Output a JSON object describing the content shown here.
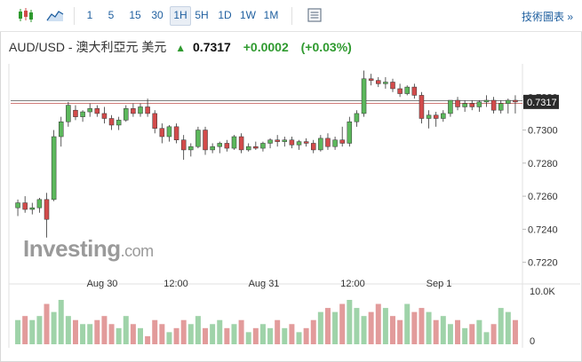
{
  "toolbar": {
    "intervals": [
      "1",
      "5",
      "15",
      "30",
      "1H",
      "5H",
      "1D",
      "1W",
      "1M"
    ],
    "active_interval": "1H",
    "advanced_label": "技術圖表 »",
    "icons": [
      "candlestick-icon",
      "area-chart-icon",
      "settings-table-icon"
    ]
  },
  "instrument": {
    "pair": "AUD/USD - 澳大利亞元 美元",
    "price": "0.7317",
    "change": "+0.0002",
    "change_pct": "(+0.03%)",
    "direction": "up"
  },
  "logo": {
    "main": "Investing",
    "suffix": ".com"
  },
  "colors": {
    "up": "#5cb85c",
    "down": "#d24b4b",
    "up_vol": "#9fd3a9",
    "down_vol": "#e29b9b",
    "accent": "#1f5f9f"
  },
  "chart_data": {
    "type": "candlestick",
    "price_axis": {
      "ticks": [
        "0.7320",
        "0.7300",
        "0.7280",
        "0.7260",
        "0.7240",
        "0.7220"
      ],
      "range": [
        0.7215,
        0.734
      ],
      "current_label": "0.7317"
    },
    "volume_axis": {
      "ticks": [
        "10.0K",
        "0"
      ]
    },
    "time_labels": [
      "Aug 30",
      "12:00",
      "Aug 31",
      "12:00",
      "Sep 1"
    ],
    "candles": [
      [
        0.7253,
        0.7258,
        0.7248,
        0.7256
      ],
      [
        0.7256,
        0.726,
        0.725,
        0.7252
      ],
      [
        0.7252,
        0.7256,
        0.7249,
        0.7253
      ],
      [
        0.7253,
        0.7259,
        0.725,
        0.7258
      ],
      [
        0.7258,
        0.7262,
        0.7235,
        0.7246
      ],
      [
        0.7258,
        0.73,
        0.7257,
        0.7296
      ],
      [
        0.7296,
        0.7308,
        0.729,
        0.7305
      ],
      [
        0.7305,
        0.7317,
        0.7302,
        0.7315
      ],
      [
        0.7312,
        0.7315,
        0.7306,
        0.7308
      ],
      [
        0.7308,
        0.7312,
        0.7305,
        0.7311
      ],
      [
        0.7311,
        0.7316,
        0.7308,
        0.7313
      ],
      [
        0.7313,
        0.7315,
        0.7308,
        0.731
      ],
      [
        0.731,
        0.7314,
        0.7304,
        0.7307
      ],
      [
        0.7307,
        0.7309,
        0.73,
        0.7303
      ],
      [
        0.7303,
        0.7308,
        0.73,
        0.7306
      ],
      [
        0.7306,
        0.7315,
        0.7305,
        0.7313
      ],
      [
        0.7313,
        0.7316,
        0.7308,
        0.731
      ],
      [
        0.731,
        0.7316,
        0.7308,
        0.7314
      ],
      [
        0.7314,
        0.7319,
        0.7308,
        0.731
      ],
      [
        0.731,
        0.7312,
        0.7298,
        0.7301
      ],
      [
        0.7301,
        0.7304,
        0.7292,
        0.7296
      ],
      [
        0.7296,
        0.7303,
        0.7293,
        0.7302
      ],
      [
        0.7302,
        0.7304,
        0.7292,
        0.7294
      ],
      [
        0.7294,
        0.7297,
        0.7282,
        0.7288
      ],
      [
        0.7288,
        0.7292,
        0.7284,
        0.729
      ],
      [
        0.729,
        0.7302,
        0.7289,
        0.73
      ],
      [
        0.73,
        0.7302,
        0.7285,
        0.7288
      ],
      [
        0.7288,
        0.7292,
        0.7286,
        0.729
      ],
      [
        0.729,
        0.7293,
        0.7286,
        0.7292
      ],
      [
        0.7292,
        0.7294,
        0.7287,
        0.7289
      ],
      [
        0.7289,
        0.7297,
        0.7288,
        0.7296
      ],
      [
        0.7296,
        0.7298,
        0.7286,
        0.7288
      ],
      [
        0.7288,
        0.7292,
        0.7287,
        0.729
      ],
      [
        0.729,
        0.7293,
        0.7288,
        0.7289
      ],
      [
        0.7289,
        0.7293,
        0.7287,
        0.7292
      ],
      [
        0.7292,
        0.7295,
        0.7289,
        0.7294
      ],
      [
        0.7294,
        0.7297,
        0.729,
        0.7293
      ],
      [
        0.7293,
        0.7296,
        0.729,
        0.7294
      ],
      [
        0.7294,
        0.7296,
        0.7289,
        0.7291
      ],
      [
        0.7291,
        0.7294,
        0.7288,
        0.7293
      ],
      [
        0.7293,
        0.7295,
        0.729,
        0.7292
      ],
      [
        0.7292,
        0.7294,
        0.7286,
        0.7288
      ],
      [
        0.7288,
        0.7297,
        0.7287,
        0.7295
      ],
      [
        0.7295,
        0.7298,
        0.7288,
        0.729
      ],
      [
        0.729,
        0.7296,
        0.7288,
        0.7294
      ],
      [
        0.7294,
        0.7302,
        0.729,
        0.7292
      ],
      [
        0.7292,
        0.7308,
        0.729,
        0.7305
      ],
      [
        0.7305,
        0.7312,
        0.7302,
        0.731
      ],
      [
        0.731,
        0.7336,
        0.7308,
        0.7331
      ],
      [
        0.7331,
        0.7334,
        0.7327,
        0.733
      ],
      [
        0.733,
        0.7332,
        0.7326,
        0.7328
      ],
      [
        0.7328,
        0.7332,
        0.7325,
        0.7329
      ],
      [
        0.7329,
        0.7331,
        0.7323,
        0.7325
      ],
      [
        0.7325,
        0.7328,
        0.732,
        0.7322
      ],
      [
        0.7322,
        0.7327,
        0.7321,
        0.7326
      ],
      [
        0.7326,
        0.7328,
        0.7319,
        0.7321
      ],
      [
        0.7321,
        0.7323,
        0.7304,
        0.7307
      ],
      [
        0.7307,
        0.7312,
        0.7301,
        0.7309
      ],
      [
        0.7309,
        0.7311,
        0.7302,
        0.7307
      ],
      [
        0.7307,
        0.7312,
        0.7305,
        0.731
      ],
      [
        0.731,
        0.7318,
        0.7308,
        0.7318
      ],
      [
        0.7318,
        0.732,
        0.7312,
        0.7314
      ],
      [
        0.7314,
        0.7318,
        0.7311,
        0.7316
      ],
      [
        0.7316,
        0.7318,
        0.7312,
        0.7314
      ],
      [
        0.7314,
        0.7318,
        0.7311,
        0.7317
      ],
      [
        0.7317,
        0.7321,
        0.7314,
        0.7318
      ],
      [
        0.7318,
        0.732,
        0.731,
        0.7312
      ],
      [
        0.7312,
        0.7318,
        0.731,
        0.7316
      ],
      [
        0.7316,
        0.7319,
        0.731,
        0.7318
      ],
      [
        0.7318,
        0.7321,
        0.731,
        0.7317
      ]
    ],
    "volume": [
      6,
      7,
      6,
      7,
      10,
      8,
      11,
      7,
      6,
      5,
      5,
      6,
      7,
      5,
      4,
      7,
      5,
      4,
      2,
      6,
      5,
      3,
      4,
      6,
      5,
      7,
      4,
      5,
      6,
      4,
      5,
      6,
      3,
      4,
      5,
      4,
      6,
      4,
      5,
      3,
      4,
      6,
      8,
      9,
      8,
      10,
      11,
      9,
      7,
      8,
      10,
      9,
      7,
      6,
      10,
      8,
      9,
      8,
      6,
      7,
      5,
      6,
      4,
      5,
      6,
      3,
      5,
      9,
      8,
      6
    ]
  }
}
